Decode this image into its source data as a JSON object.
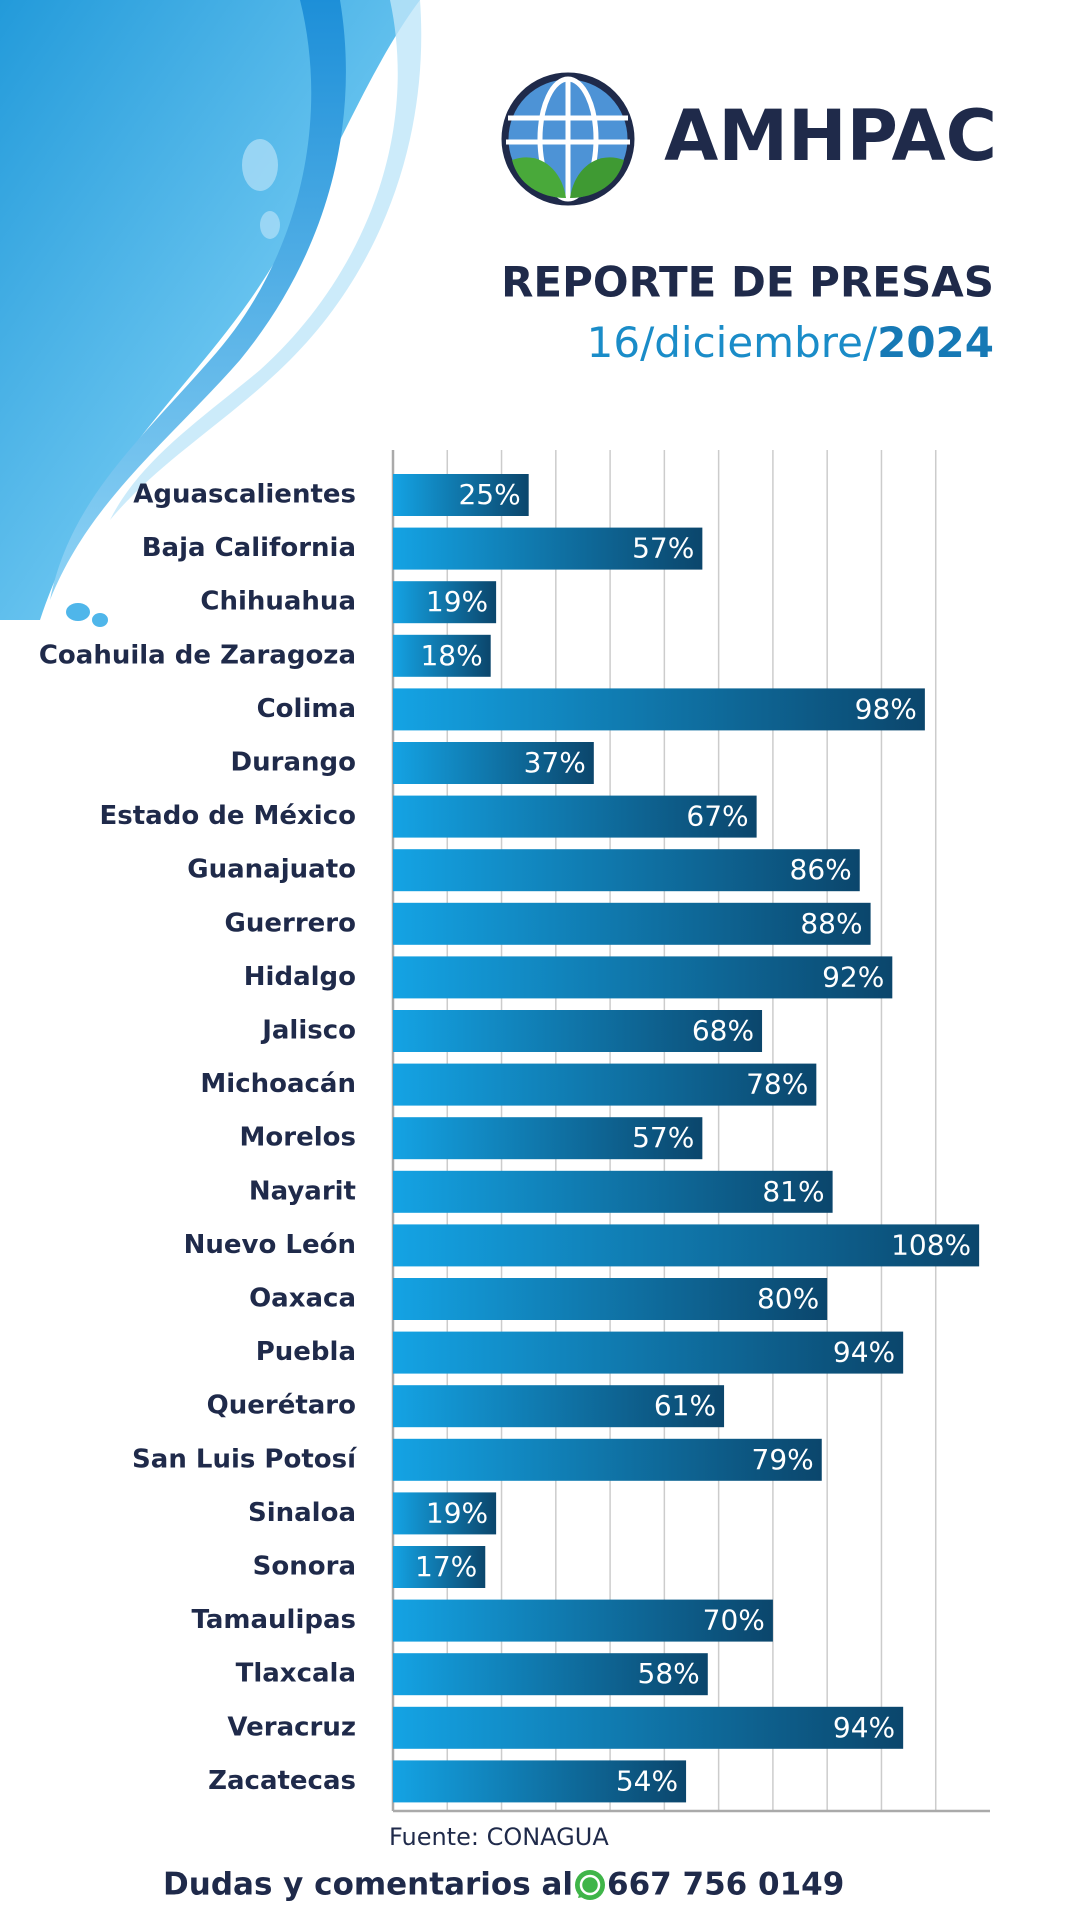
{
  "brand": "AMHPAC",
  "chart_data": {
    "type": "bar",
    "orientation": "horizontal",
    "title": "REPORTE DE PRESAS",
    "subtitle_parts": [
      "16/diciembre/",
      "2024"
    ],
    "categories": [
      "Aguascalientes",
      "Baja California",
      "Chihuahua",
      "Coahuila de Zaragoza",
      "Colima",
      "Durango",
      "Estado de México",
      "Guanajuato",
      "Guerrero",
      "Hidalgo",
      "Jalisco",
      "Michoacán",
      "Morelos",
      "Nayarit",
      "Nuevo León",
      "Oaxaca",
      "Puebla",
      "Querétaro",
      "San Luis Potosí",
      "Sinaloa",
      "Sonora",
      "Tamaulipas",
      "Tlaxcala",
      "Veracruz",
      "Zacatecas"
    ],
    "values": [
      25,
      57,
      19,
      18,
      98,
      37,
      67,
      86,
      88,
      92,
      68,
      78,
      57,
      81,
      108,
      80,
      94,
      61,
      79,
      19,
      17,
      70,
      58,
      94,
      54
    ],
    "value_labels": [
      "25%",
      "57%",
      "19%",
      "18%",
      "98%",
      "37%",
      "67%",
      "86%",
      "88%",
      "92%",
      "68%",
      "78%",
      "57%",
      "81%",
      "108%",
      "80%",
      "94%",
      "61%",
      "79%",
      "19%",
      "17%",
      "70%",
      "58%",
      "94%",
      "54%"
    ],
    "colors": [
      "#14a3e4",
      "#0b466c"
    ],
    "xlim": [
      0,
      110
    ],
    "xticks": [
      0,
      10,
      20,
      30,
      40,
      50,
      60,
      70,
      80,
      90,
      100
    ],
    "grid": true,
    "source": "Fuente: CONAGUA"
  },
  "footer": {
    "text": "Dudas y comentarios al",
    "phone": "667 756 0149"
  }
}
